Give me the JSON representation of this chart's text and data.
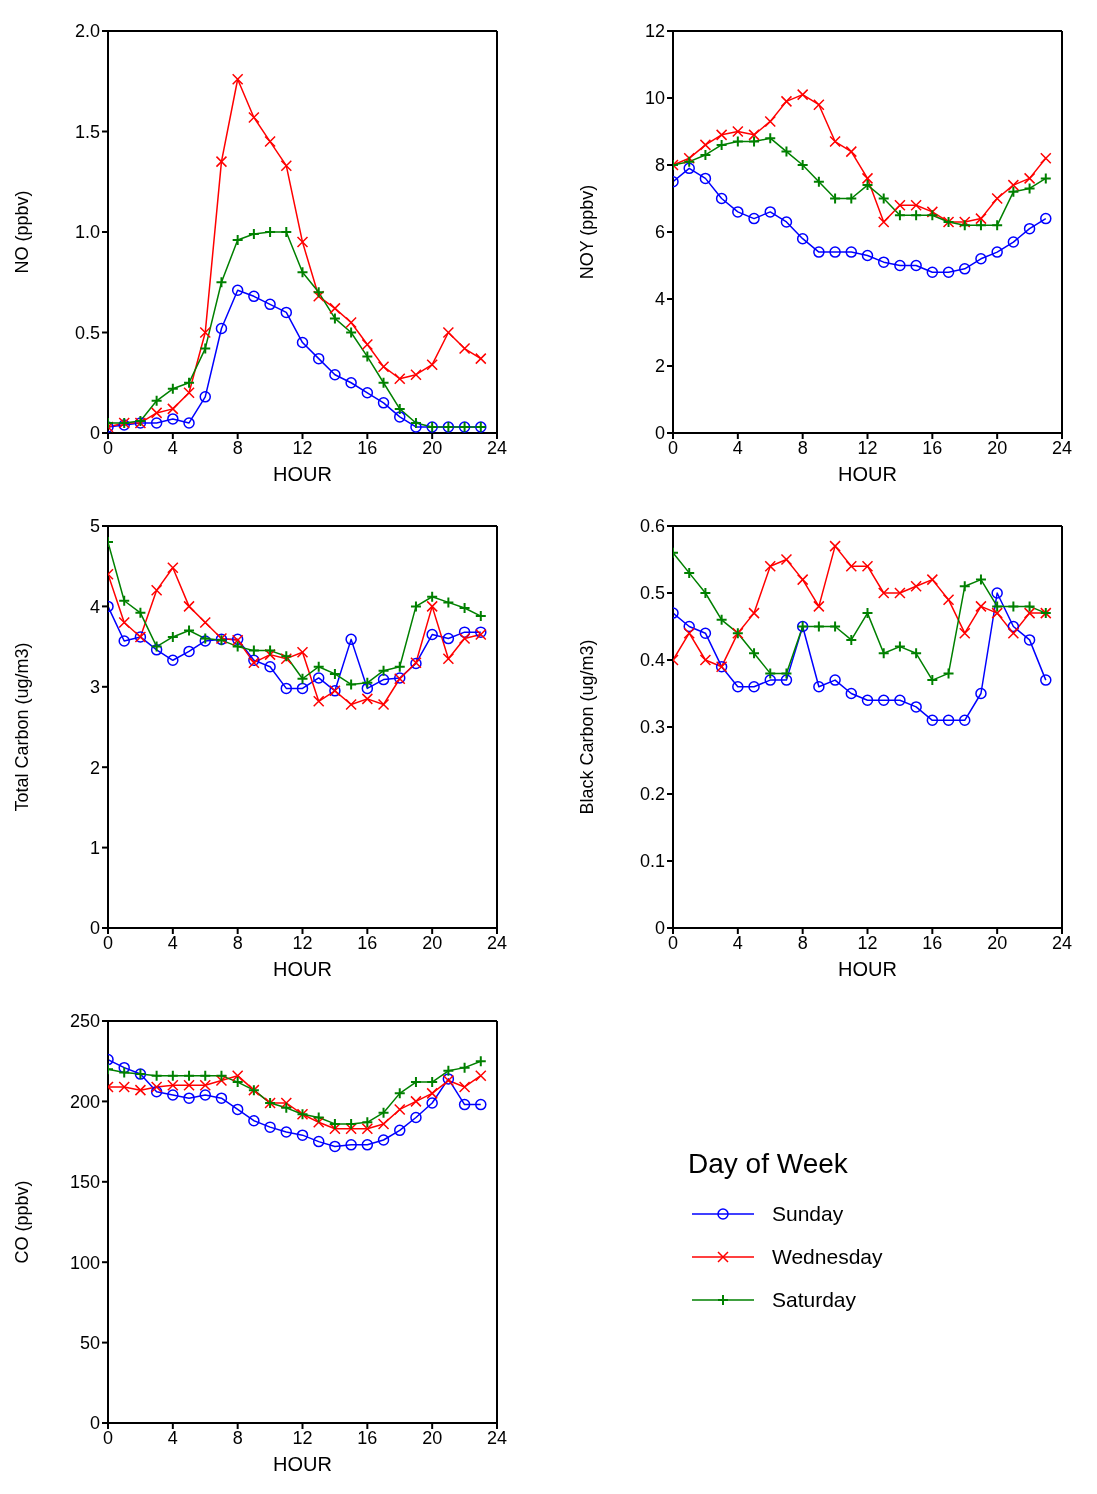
{
  "chart_data": [
    {
      "type": "line",
      "xlabel": "HOUR",
      "ylabel": "NO (ppbv)",
      "x": [
        0,
        1,
        2,
        3,
        4,
        5,
        6,
        7,
        8,
        9,
        10,
        11,
        12,
        13,
        14,
        15,
        16,
        17,
        18,
        19,
        20,
        21,
        22,
        23
      ],
      "xlim": [
        0,
        24
      ],
      "xticks": [
        0,
        4,
        8,
        12,
        16,
        20,
        24
      ],
      "ylim": [
        0,
        2
      ],
      "yticks": [
        0,
        0.5,
        {
          "value": 1,
          "label": "1.0"
        },
        1.5,
        {
          "value": 2,
          "label": "2.0"
        }
      ],
      "grid": false,
      "legend": false,
      "series": [
        {
          "color": "#0000ff",
          "marker": "circle",
          "values": [
            0.03,
            0.04,
            0.05,
            0.05,
            0.07,
            0.05,
            0.18,
            0.52,
            0.71,
            0.68,
            0.64,
            0.6,
            0.45,
            0.37,
            0.29,
            0.25,
            0.2,
            0.15,
            0.08,
            0.03,
            0.03,
            0.03,
            0.03,
            0.03
          ]
        },
        {
          "color": "#ff0000",
          "marker": "cross",
          "values": [
            0.03,
            0.05,
            0.05,
            0.1,
            0.12,
            0.2,
            0.5,
            1.35,
            1.76,
            1.57,
            1.45,
            1.33,
            0.95,
            0.68,
            0.62,
            0.55,
            0.44,
            0.33,
            0.27,
            0.29,
            0.34,
            0.5,
            0.42,
            0.37
          ]
        },
        {
          "color": "#008000",
          "marker": "plus",
          "values": [
            0.05,
            0.05,
            0.06,
            0.16,
            0.22,
            0.25,
            0.42,
            0.75,
            0.96,
            0.99,
            1.0,
            1.0,
            0.8,
            0.7,
            0.57,
            0.5,
            0.38,
            0.25,
            0.12,
            0.05,
            0.03,
            0.03,
            0.03,
            0.03
          ]
        }
      ]
    },
    {
      "type": "line",
      "xlabel": "HOUR",
      "ylabel": "NOY (ppbv)",
      "x": [
        0,
        1,
        2,
        3,
        4,
        5,
        6,
        7,
        8,
        9,
        10,
        11,
        12,
        13,
        14,
        15,
        16,
        17,
        18,
        19,
        20,
        21,
        22,
        23
      ],
      "xlim": [
        0,
        24
      ],
      "xticks": [
        0,
        4,
        8,
        12,
        16,
        20,
        24
      ],
      "ylim": [
        0,
        12
      ],
      "yticks": [
        0,
        2,
        4,
        6,
        8,
        10,
        12
      ],
      "grid": false,
      "legend": false,
      "series": [
        {
          "color": "#0000ff",
          "marker": "circle",
          "values": [
            7.5,
            7.9,
            7.6,
            7.0,
            6.6,
            6.4,
            6.6,
            6.3,
            5.8,
            5.4,
            5.4,
            5.4,
            5.3,
            5.1,
            5.0,
            5.0,
            4.8,
            4.8,
            4.9,
            5.2,
            5.4,
            5.7,
            6.1,
            6.4
          ]
        },
        {
          "color": "#ff0000",
          "marker": "cross",
          "values": [
            8.0,
            8.2,
            8.6,
            8.9,
            9.0,
            8.9,
            9.3,
            9.9,
            10.1,
            9.8,
            8.7,
            8.4,
            7.6,
            6.3,
            6.8,
            6.8,
            6.6,
            6.3,
            6.3,
            6.4,
            7.0,
            7.4,
            7.6,
            8.2
          ]
        },
        {
          "color": "#008000",
          "marker": "plus",
          "values": [
            8.0,
            8.1,
            8.3,
            8.6,
            8.7,
            8.7,
            8.8,
            8.4,
            8.0,
            7.5,
            7.0,
            7.0,
            7.4,
            7.0,
            6.5,
            6.5,
            6.5,
            6.3,
            6.2,
            6.2,
            6.2,
            7.2,
            7.3,
            7.6
          ]
        }
      ]
    },
    {
      "type": "line",
      "xlabel": "HOUR",
      "ylabel": "Total Carbon (ug/m3)",
      "x": [
        0,
        1,
        2,
        3,
        4,
        5,
        6,
        7,
        8,
        9,
        10,
        11,
        12,
        13,
        14,
        15,
        16,
        17,
        18,
        19,
        20,
        21,
        22,
        23
      ],
      "xlim": [
        0,
        24
      ],
      "xticks": [
        0,
        4,
        8,
        12,
        16,
        20,
        24
      ],
      "ylim": [
        0,
        5
      ],
      "yticks": [
        0,
        1,
        2,
        3,
        4,
        5
      ],
      "grid": false,
      "legend": false,
      "series": [
        {
          "color": "#0000ff",
          "marker": "circle",
          "values": [
            4.0,
            3.57,
            3.62,
            3.46,
            3.33,
            3.44,
            3.57,
            3.59,
            3.59,
            3.33,
            3.25,
            2.98,
            2.98,
            3.11,
            2.95,
            3.59,
            2.98,
            3.09,
            3.11,
            3.29,
            3.65,
            3.6,
            3.68,
            3.68
          ]
        },
        {
          "color": "#ff0000",
          "marker": "cross",
          "values": [
            4.4,
            3.8,
            3.62,
            4.2,
            4.48,
            4.0,
            3.8,
            3.6,
            3.58,
            3.3,
            3.4,
            3.35,
            3.43,
            2.82,
            2.95,
            2.78,
            2.85,
            2.78,
            3.1,
            3.3,
            4.0,
            3.35,
            3.6,
            3.65
          ]
        },
        {
          "color": "#008000",
          "marker": "plus",
          "values": [
            4.8,
            4.07,
            3.92,
            3.5,
            3.62,
            3.7,
            3.6,
            3.58,
            3.5,
            3.45,
            3.45,
            3.38,
            3.1,
            3.25,
            3.16,
            3.03,
            3.05,
            3.2,
            3.25,
            4.0,
            4.12,
            4.05,
            3.98,
            3.88
          ]
        }
      ]
    },
    {
      "type": "line",
      "xlabel": "HOUR",
      "ylabel": "Black Carbon (ug/m3)",
      "x": [
        0,
        1,
        2,
        3,
        4,
        5,
        6,
        7,
        8,
        9,
        10,
        11,
        12,
        13,
        14,
        15,
        16,
        17,
        18,
        19,
        20,
        21,
        22,
        23
      ],
      "xlim": [
        0,
        24
      ],
      "xticks": [
        0,
        4,
        8,
        12,
        16,
        20,
        24
      ],
      "ylim": [
        0,
        0.6
      ],
      "yticks": [
        0,
        0.1,
        0.2,
        0.3,
        0.4,
        0.5,
        0.6
      ],
      "grid": false,
      "legend": false,
      "series": [
        {
          "color": "#0000ff",
          "marker": "circle",
          "values": [
            0.47,
            0.45,
            0.44,
            0.39,
            0.36,
            0.36,
            0.37,
            0.37,
            0.45,
            0.36,
            0.37,
            0.35,
            0.34,
            0.34,
            0.34,
            0.33,
            0.31,
            0.31,
            0.31,
            0.35,
            0.5,
            0.45,
            0.43,
            0.37
          ]
        },
        {
          "color": "#ff0000",
          "marker": "cross",
          "values": [
            0.4,
            0.44,
            0.4,
            0.39,
            0.44,
            0.47,
            0.54,
            0.55,
            0.52,
            0.48,
            0.57,
            0.54,
            0.54,
            0.5,
            0.5,
            0.51,
            0.52,
            0.49,
            0.44,
            0.48,
            0.47,
            0.44,
            0.47,
            0.47
          ]
        },
        {
          "color": "#008000",
          "marker": "plus",
          "values": [
            0.56,
            0.53,
            0.5,
            0.46,
            0.44,
            0.41,
            0.38,
            0.38,
            0.45,
            0.45,
            0.45,
            0.43,
            0.47,
            0.41,
            0.42,
            0.41,
            0.37,
            0.38,
            0.51,
            0.52,
            0.48,
            0.48,
            0.48,
            0.47
          ]
        }
      ]
    },
    {
      "type": "line",
      "xlabel": "HOUR",
      "ylabel": "CO (ppbv)",
      "x": [
        0,
        1,
        2,
        3,
        4,
        5,
        6,
        7,
        8,
        9,
        10,
        11,
        12,
        13,
        14,
        15,
        16,
        17,
        18,
        19,
        20,
        21,
        22,
        23
      ],
      "xlim": [
        0,
        24
      ],
      "xticks": [
        0,
        4,
        8,
        12,
        16,
        20,
        24
      ],
      "ylim": [
        0,
        250
      ],
      "yticks": [
        0,
        50,
        100,
        150,
        200,
        250
      ],
      "grid": false,
      "legend": "right",
      "legend_title": "Day of Week",
      "series": [
        {
          "name": "Sunday",
          "color": "#0000ff",
          "marker": "circle",
          "values": [
            226,
            221,
            217,
            206,
            204,
            202,
            204,
            202,
            195,
            188,
            184,
            181,
            179,
            175,
            172,
            173,
            173,
            176,
            182,
            190,
            199,
            214,
            198,
            198
          ]
        },
        {
          "name": "Wednesday",
          "color": "#ff0000",
          "marker": "cross",
          "values": [
            209,
            209,
            207,
            209,
            210,
            210,
            210,
            213,
            216,
            207,
            199,
            199,
            192,
            187,
            183,
            183,
            183,
            186,
            195,
            200,
            205,
            213,
            209,
            216
          ]
        },
        {
          "name": "Saturday",
          "color": "#008000",
          "marker": "plus",
          "values": [
            220,
            218,
            217,
            216,
            216,
            216,
            216,
            216,
            212,
            207,
            199,
            196,
            192,
            190,
            186,
            186,
            187,
            193,
            205,
            212,
            212,
            219,
            221,
            225
          ]
        }
      ]
    }
  ]
}
